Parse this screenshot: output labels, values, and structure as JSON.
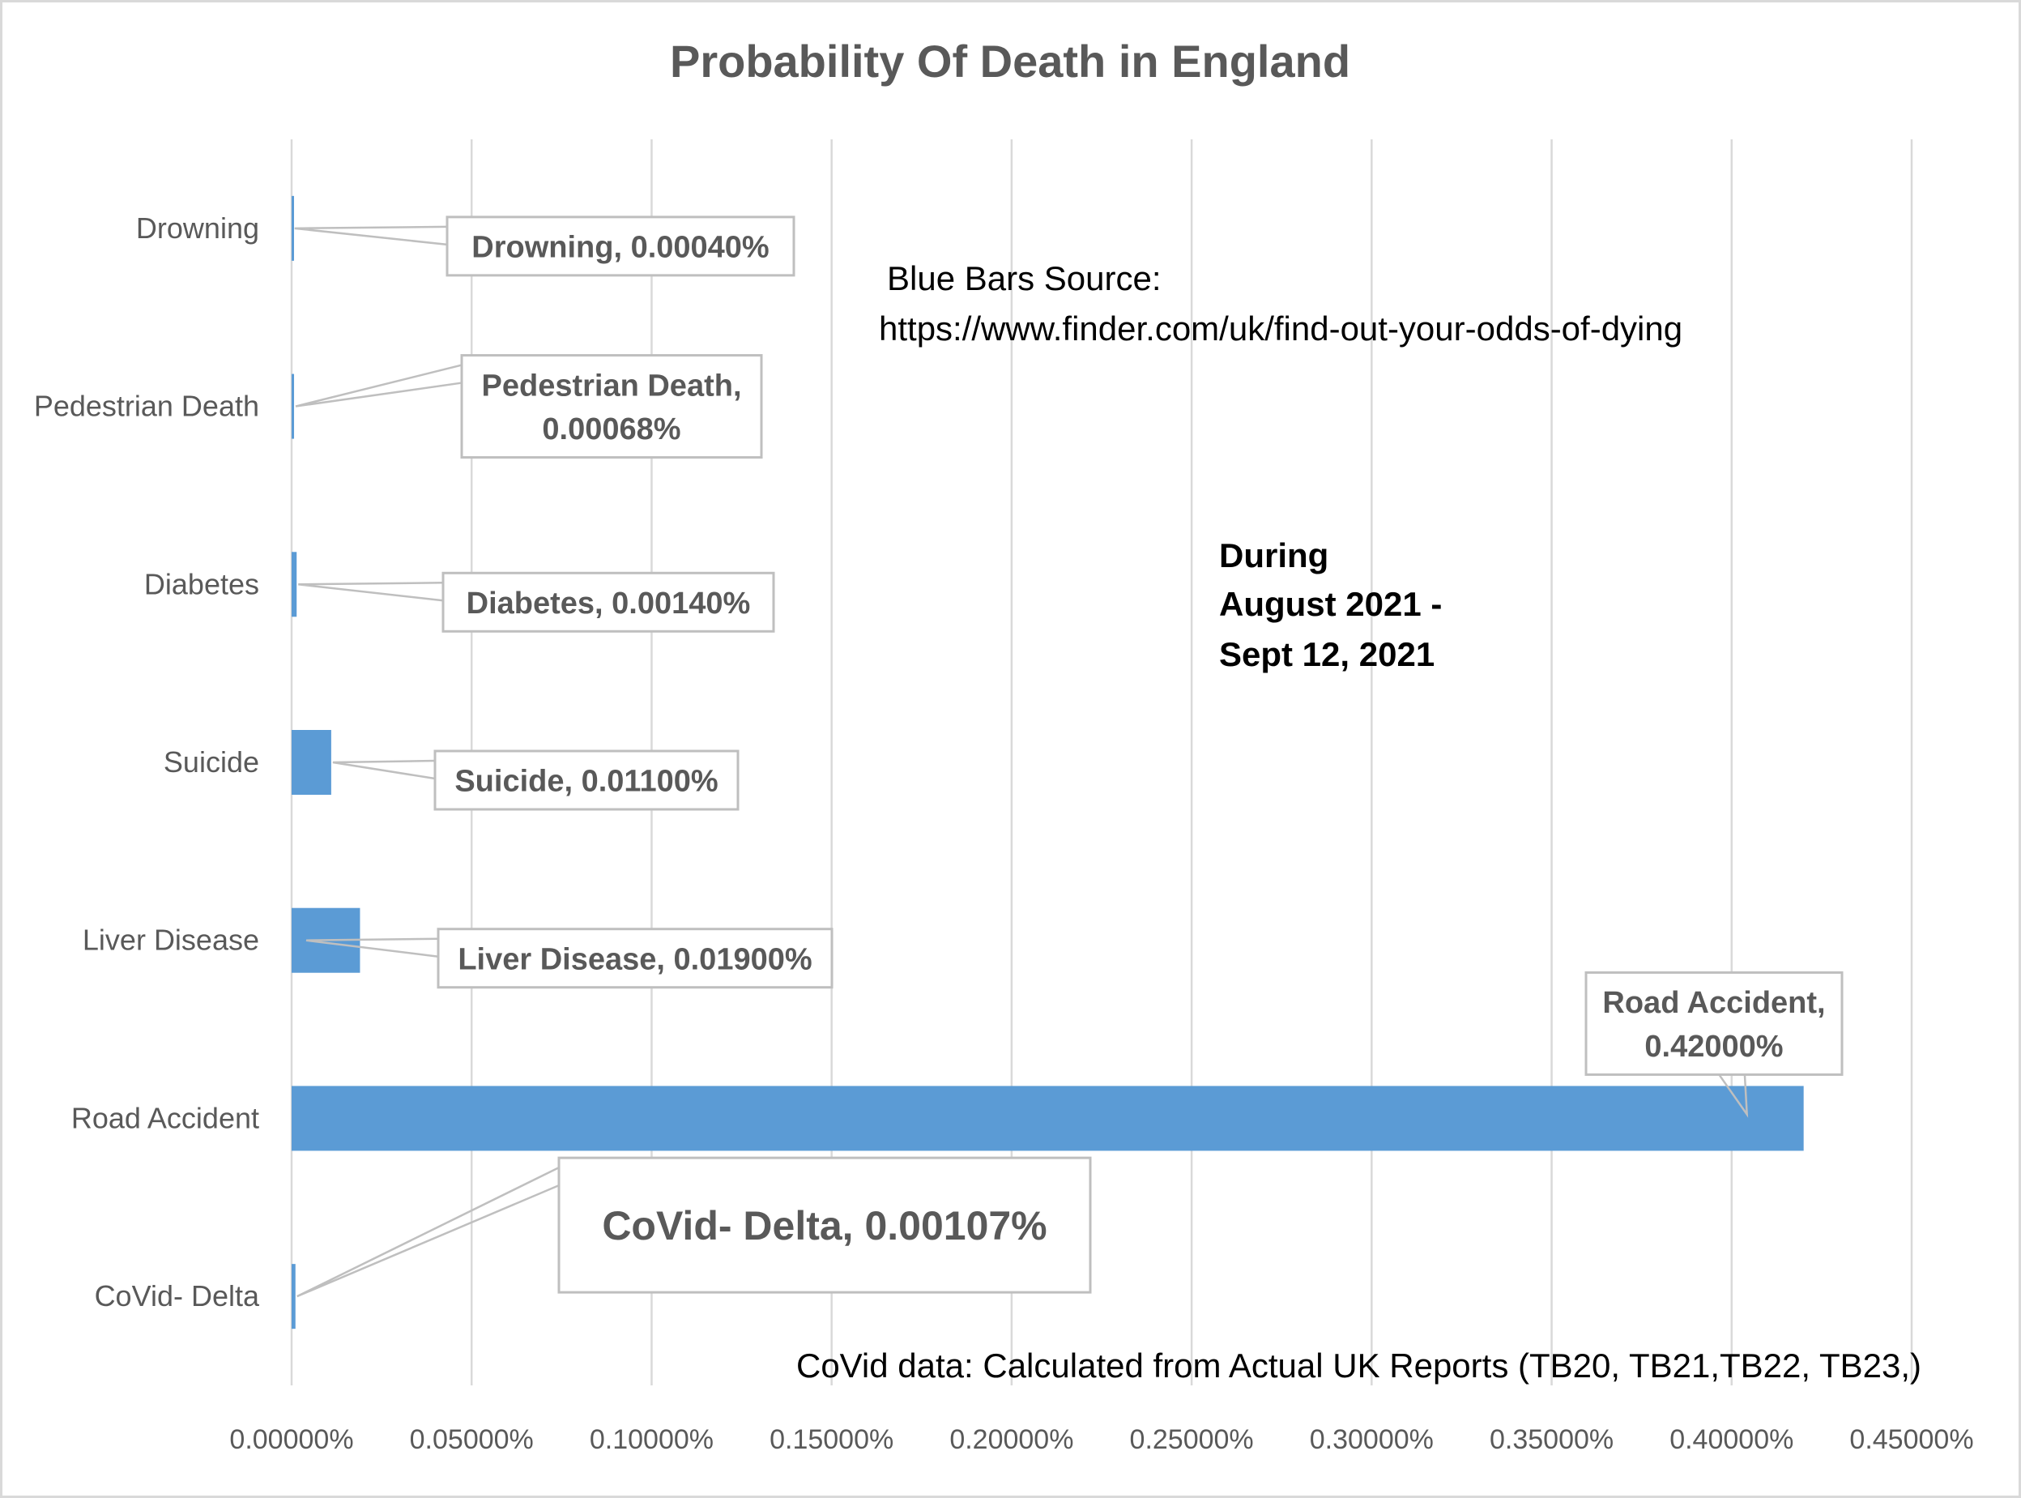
{
  "chart_data": {
    "type": "bar",
    "orientation": "horizontal",
    "title": "Probability Of Death in England",
    "xlabel": "",
    "ylabel": "",
    "categories": [
      "Drowning",
      "Pedestrian Death",
      "Diabetes",
      "Suicide",
      "Liver Disease",
      "Road Accident",
      "CoVid- Delta"
    ],
    "values": [
      0.0004,
      0.00068,
      0.0014,
      0.011,
      0.019,
      0.42,
      0.00107
    ],
    "value_unit": "%",
    "data_labels": [
      [
        "Drowning, 0.00040%"
      ],
      [
        "Pedestrian Death,",
        "0.00068%"
      ],
      [
        "Diabetes, 0.00140%"
      ],
      [
        "Suicide, 0.01100%"
      ],
      [
        "Liver Disease, 0.01900%"
      ],
      [
        "Road Accident,",
        "0.42000%"
      ],
      [
        "CoVid- Delta, 0.00107%"
      ]
    ],
    "xlim": [
      0,
      0.45
    ],
    "xticks": [
      "0.00000%",
      "0.05000%",
      "0.10000%",
      "0.15000%",
      "0.20000%",
      "0.25000%",
      "0.30000%",
      "0.35000%",
      "0.40000%",
      "0.45000%"
    ],
    "grid": "vertical",
    "legend": "none",
    "bar_color": "#5b9bd5",
    "annotations": {
      "source": [
        "Blue Bars Source:",
        "https://www.finder.com/uk/find-out-your-odds-of-dying"
      ],
      "period": [
        "During",
        "August 2021 -",
        " Sept 12, 2021"
      ],
      "covid_note": "CoVid data: Calculated from Actual UK Reports (TB20, TB21,TB22, TB23,)"
    }
  }
}
